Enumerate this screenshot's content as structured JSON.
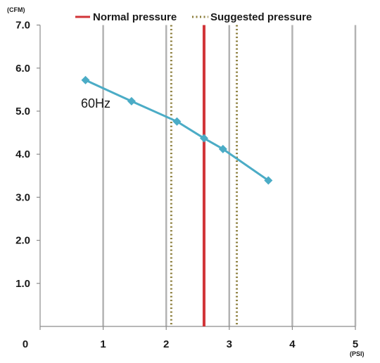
{
  "chart_data": {
    "type": "line",
    "ylabel": "(CFM)",
    "xlabel": "(PSI)",
    "xlim": [
      0,
      5
    ],
    "ylim": [
      0,
      7
    ],
    "x_ticks": [
      "0",
      "1",
      "2",
      "3",
      "4",
      "5"
    ],
    "y_ticks": [
      "1.0",
      "2.0",
      "3.0",
      "4.0",
      "5.0",
      "6.0",
      "7.0"
    ],
    "x_tick_values": [
      0,
      1,
      2,
      3,
      4,
      5
    ],
    "y_tick_values": [
      1,
      2,
      3,
      4,
      5,
      6,
      7
    ],
    "grid": "vertical",
    "legend_position": "top",
    "legend": [
      {
        "label": "Normal pressure",
        "style": "solid",
        "color": "#d13438"
      },
      {
        "label": "Suggested pressure",
        "style": "dotted",
        "color": "#8b7d3a"
      }
    ],
    "series": [
      {
        "name": "60Hz",
        "color": "#4bacc6",
        "x": [
          0.72,
          1.45,
          2.17,
          2.6,
          2.9,
          3.62
        ],
        "y": [
          5.72,
          5.23,
          4.76,
          4.37,
          4.12,
          3.39
        ]
      }
    ],
    "reference_lines": [
      {
        "type": "normal",
        "x": 2.6,
        "color": "#d13438",
        "style": "solid"
      },
      {
        "type": "suggested",
        "x": 2.08,
        "color": "#8b7d3a",
        "style": "dotted"
      },
      {
        "type": "suggested",
        "x": 3.12,
        "color": "#8b7d3a",
        "style": "dotted"
      }
    ]
  }
}
